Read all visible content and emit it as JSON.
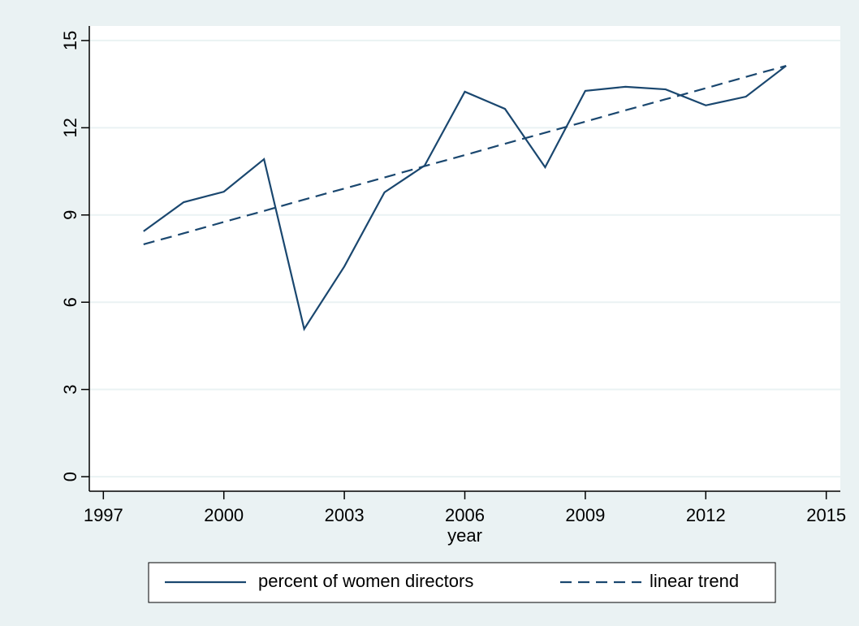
{
  "chart_data": {
    "type": "line",
    "x_label": "year",
    "x": [
      1998,
      1999,
      2000,
      2001,
      2002,
      2003,
      2004,
      2005,
      2006,
      2007,
      2008,
      2009,
      2010,
      2011,
      2012,
      2013,
      2014
    ],
    "series": [
      {
        "name": "percent of women directors",
        "color": "#1a476f",
        "dash": "solid",
        "values": [
          8.44,
          9.44,
          9.8,
          10.92,
          5.08,
          7.23,
          9.78,
          10.7,
          13.24,
          12.65,
          10.64,
          13.27,
          13.41,
          13.32,
          12.77,
          13.07,
          14.13
        ]
      },
      {
        "name": "linear trend",
        "color": "#1a476f",
        "dash": "dashed",
        "values": [
          7.99,
          8.37,
          8.76,
          9.14,
          9.53,
          9.91,
          10.29,
          10.68,
          11.06,
          11.45,
          11.83,
          12.21,
          12.6,
          12.98,
          13.36,
          13.75,
          14.13
        ]
      }
    ],
    "xlim": [
      1996.65,
      2015.35
    ],
    "xticks": [
      1997,
      2000,
      2003,
      2006,
      2009,
      2012,
      2015
    ],
    "ylim": [
      -0.5,
      15.5
    ],
    "yticks": [
      0,
      3,
      6,
      9,
      12,
      15
    ],
    "grid": true,
    "legend": "bottom"
  }
}
